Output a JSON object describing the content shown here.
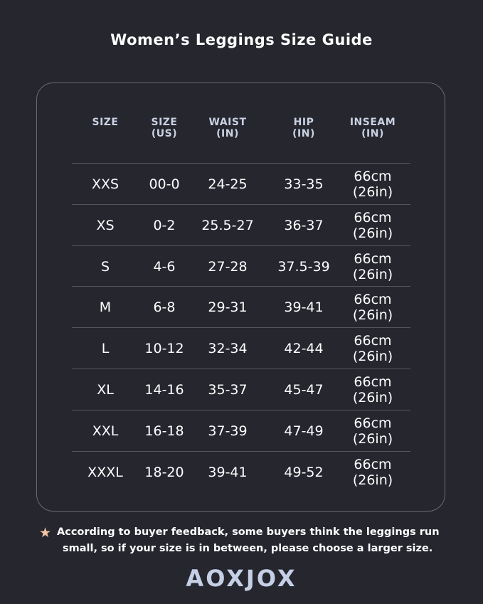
{
  "title": "Women’s Leggings Size Guide",
  "table": {
    "headers": [
      {
        "line1": "SIZE",
        "line2": ""
      },
      {
        "line1": "SIZE",
        "line2": "(US)"
      },
      {
        "line1": "WAIST",
        "line2": "(IN)"
      },
      {
        "line1": "HIP",
        "line2": "(IN)"
      },
      {
        "line1": "INSEAM",
        "line2": "(IN)"
      }
    ],
    "rows": [
      [
        "XXS",
        "00-0",
        "24-25",
        "33-35",
        "66cm (26in)"
      ],
      [
        "XS",
        "0-2",
        "25.5-27",
        "36-37",
        "66cm (26in)"
      ],
      [
        "S",
        "4-6",
        "27-28",
        "37.5-39",
        "66cm (26in)"
      ],
      [
        "M",
        "6-8",
        "29-31",
        "39-41",
        "66cm (26in)"
      ],
      [
        "L",
        "10-12",
        "32-34",
        "42-44",
        "66cm (26in)"
      ],
      [
        "XL",
        "14-16",
        "35-37",
        "45-47",
        "66cm (26in)"
      ],
      [
        "XXL",
        "16-18",
        "37-39",
        "47-49",
        "66cm (26in)"
      ],
      [
        "XXXL",
        "18-20",
        "39-41",
        "49-52",
        "66cm (26in)"
      ]
    ]
  },
  "note": {
    "icon": "star-icon",
    "line1": "According to buyer feedback, some buyers think the leggings run",
    "line2": "small, so if your size is in between, please choose a larger size."
  },
  "brand": "AOXJOX",
  "colors": {
    "background": "#25262e",
    "header_text": "#c9d1e2",
    "star": "#f2c4a4",
    "logo": "#c5d0e6"
  }
}
